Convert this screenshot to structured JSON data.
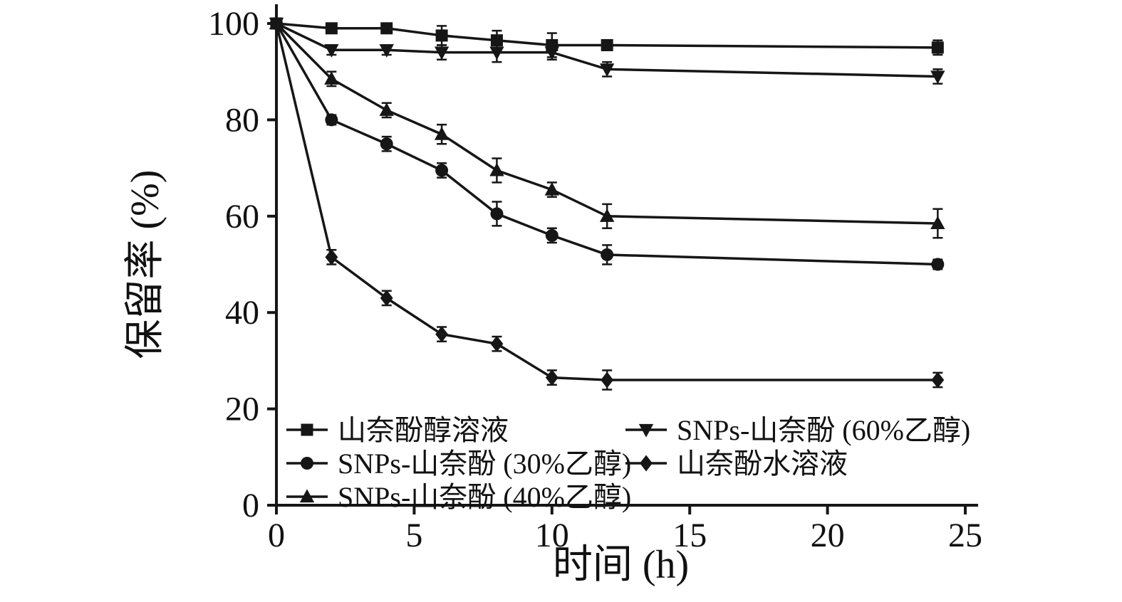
{
  "chart_data": {
    "type": "line",
    "title": "",
    "xlabel": "时间 (h)",
    "ylabel": "保留率 (%)",
    "xlim": [
      0,
      25
    ],
    "ylim": [
      0,
      100
    ],
    "xticks": [
      0,
      5,
      10,
      15,
      20,
      25
    ],
    "yticks": [
      0,
      20,
      40,
      60,
      80,
      100
    ],
    "grid": false,
    "x": [
      0,
      2,
      4,
      6,
      8,
      10,
      12,
      24
    ],
    "series": [
      {
        "name": "山奈酚醇溶液",
        "marker": "square",
        "values": [
          100,
          99,
          99,
          97.5,
          96.5,
          95.5,
          95.5,
          95
        ],
        "errors": [
          0,
          1,
          1,
          2,
          2,
          2.5,
          1,
          1.5
        ]
      },
      {
        "name": "SNPs-山奈酚 (30%乙醇)",
        "marker": "circle",
        "values": [
          100,
          80,
          75,
          69.5,
          60.5,
          56,
          52,
          50
        ],
        "errors": [
          0,
          1,
          1.5,
          1.5,
          2.5,
          1.5,
          2,
          1
        ]
      },
      {
        "name": "SNPs-山奈酚 (40%乙醇)",
        "marker": "triangle-up",
        "values": [
          100,
          88.5,
          82,
          77,
          69.5,
          65.5,
          60,
          58.5
        ],
        "errors": [
          0,
          1.5,
          1.5,
          2,
          2.5,
          1.5,
          2.5,
          3
        ]
      },
      {
        "name": "SNPs-山奈酚 (60%乙醇)",
        "marker": "triangle-down",
        "values": [
          100,
          94.5,
          94.5,
          94,
          94,
          94,
          90.5,
          89
        ],
        "errors": [
          0,
          1,
          1,
          1.5,
          2,
          1.5,
          1.5,
          1.5
        ]
      },
      {
        "name": "山奈酚水溶液",
        "marker": "diamond",
        "values": [
          100,
          51.5,
          43,
          35.5,
          33.5,
          26.5,
          26,
          26
        ],
        "errors": [
          0,
          1.5,
          1.5,
          1.5,
          1.5,
          1.5,
          2,
          1.5
        ]
      }
    ],
    "legend": {
      "position": "inside-bottom-left",
      "columns": [
        [
          0,
          1,
          2
        ],
        [
          3,
          4
        ]
      ]
    }
  },
  "colors": {
    "line": "#161616",
    "background": "#ffffff"
  }
}
